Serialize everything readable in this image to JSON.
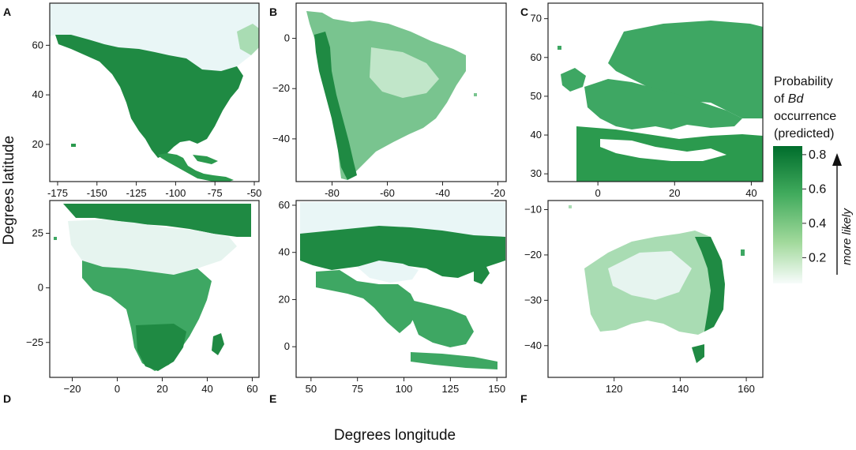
{
  "figure": {
    "x_axis_title": "Degrees longitude",
    "y_axis_title": "Degrees latitude"
  },
  "colors": {
    "background": "#ffffff",
    "frame": "#222222",
    "high": "#006d2c",
    "mid": "#41ab5d",
    "low": "#a1d99b",
    "lowest": "#eef8f8"
  },
  "panels": [
    {
      "letter": "A",
      "region": "North America",
      "x_ticks": [
        -175,
        -150,
        -125,
        -100,
        -75,
        -50
      ],
      "x_tick_labels": [
        "-175",
        "-150",
        "-125",
        "-100",
        "-75",
        "-50"
      ],
      "x_range": [
        -180,
        -47
      ],
      "y_ticks": [
        20,
        40,
        60
      ],
      "y_tick_labels": [
        "20",
        "40",
        "60"
      ],
      "y_range": [
        5,
        77
      ]
    },
    {
      "letter": "B",
      "region": "South America",
      "x_ticks": [
        -80,
        -60,
        -40,
        -20
      ],
      "x_tick_labels": [
        "-80",
        "-60",
        "-40",
        "-20"
      ],
      "x_range": [
        -93,
        -17
      ],
      "y_ticks": [
        0,
        -20,
        -40
      ],
      "y_tick_labels": [
        "0",
        "−20",
        "−40"
      ],
      "y_range": [
        -57,
        14
      ]
    },
    {
      "letter": "C",
      "region": "Europe",
      "x_ticks": [
        0,
        20,
        40
      ],
      "x_tick_labels": [
        "0",
        "20",
        "40"
      ],
      "x_range": [
        -13,
        43
      ],
      "y_ticks": [
        30,
        40,
        50,
        60,
        70
      ],
      "y_tick_labels": [
        "30",
        "40",
        "50",
        "60",
        "70"
      ],
      "y_range": [
        28,
        74
      ]
    },
    {
      "letter": "D",
      "region": "Africa",
      "x_ticks": [
        -20,
        0,
        20,
        40,
        60
      ],
      "x_tick_labels": [
        "−20",
        "0",
        "20",
        "40",
        "60"
      ],
      "x_range": [
        -30,
        63
      ],
      "y_ticks": [
        25,
        0,
        -25
      ],
      "y_tick_labels": [
        "25",
        "0",
        "−25"
      ],
      "y_range": [
        -41,
        40
      ]
    },
    {
      "letter": "E",
      "region": "Asia",
      "x_ticks": [
        50,
        75,
        100,
        125,
        150
      ],
      "x_tick_labels": [
        "50",
        "75",
        "100",
        "125",
        "150"
      ],
      "x_range": [
        42,
        155
      ],
      "y_ticks": [
        60,
        40,
        20,
        0
      ],
      "y_tick_labels": [
        "60",
        "40",
        "20",
        "0"
      ],
      "y_range": [
        -13,
        62
      ]
    },
    {
      "letter": "F",
      "region": "Australia",
      "x_ticks": [
        120,
        140,
        160
      ],
      "x_tick_labels": [
        "120",
        "140",
        "160"
      ],
      "x_range": [
        100,
        165
      ],
      "y_ticks": [
        -10,
        -20,
        -30,
        -40
      ],
      "y_tick_labels": [
        "−10",
        "−20",
        "−30",
        "−40"
      ],
      "y_range": [
        -47,
        -8
      ]
    }
  ],
  "legend": {
    "title_lines": [
      "Probability",
      "of ",
      "occurrence",
      "(predicted)"
    ],
    "title_italic": "Bd",
    "ticks": [
      0.8,
      0.6,
      0.4,
      0.2
    ],
    "tick_labels": [
      "0.8",
      "0.6",
      "0.4",
      "0.2"
    ],
    "range": [
      0.05,
      0.85
    ],
    "arrow_label": "more likely"
  }
}
